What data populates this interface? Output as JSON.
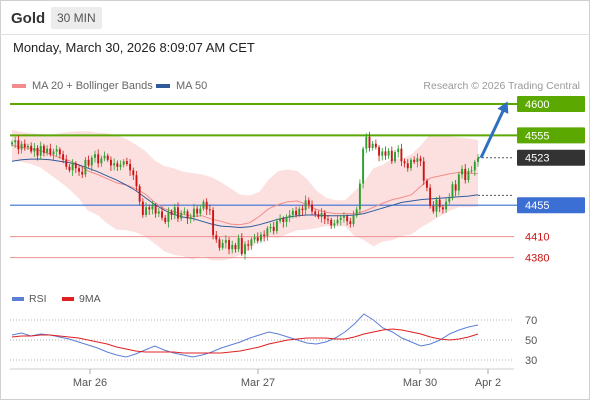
{
  "header": {
    "title": "Gold",
    "timeframe": "30 MIN",
    "datetime": "Monday, March 30, 2026 8:09:07 AM CET"
  },
  "legend": {
    "ma20_label": "MA 20 + Bollinger Bands",
    "ma50_label": "MA 50",
    "credit": "Research © 2026 Trading Central",
    "ma20_color": "#f28b8b",
    "ma50_color": "#2f5b9b"
  },
  "rsi_legend": {
    "rsi_label": "RSI",
    "ma9_label": "9MA",
    "rsi_color": "#5b7fd6",
    "ma9_color": "#e02020"
  },
  "colors": {
    "up_candle": "#2e9e2e",
    "down_candle": "#cc1414",
    "bollinger_fill": "#fbdada",
    "resistance": "#5aa800",
    "support_blue": "#3b6fd4",
    "support_red": "#ef8f8f",
    "current": "#333333",
    "arrow": "#2f6fc0"
  },
  "chart_data": [
    {
      "type": "candlestick",
      "title": "Gold",
      "ylim": [
        4345,
        4620
      ],
      "x_tick_labels": [
        "Mar 26",
        "Mar 27",
        "Mar 30",
        "Apr 2"
      ],
      "levels": [
        {
          "label": "4600",
          "value": 4600,
          "kind": "resistance"
        },
        {
          "label": "4555",
          "value": 4555,
          "kind": "resistance"
        },
        {
          "label": "4523",
          "value": 4523,
          "kind": "current"
        },
        {
          "label": "4455",
          "value": 4455,
          "kind": "pivot"
        },
        {
          "label": "4410",
          "value": 4410,
          "kind": "support"
        },
        {
          "label": "4380",
          "value": 4380,
          "kind": "support"
        }
      ],
      "close": [
        4545,
        4548,
        4535,
        4543,
        4538,
        4540,
        4532,
        4537,
        4526,
        4540,
        4530,
        4536,
        4528,
        4532,
        4535,
        4528,
        4520,
        4510,
        4505,
        4515,
        4508,
        4503,
        4499,
        4520,
        4512,
        4523,
        4528,
        4515,
        4522,
        4526,
        4520,
        4512,
        4515,
        4510,
        4513,
        4518,
        4514,
        4505,
        4498,
        4482,
        4460,
        4441,
        4452,
        4449,
        4455,
        4443,
        4446,
        4437,
        4431,
        4446,
        4441,
        4452,
        4436,
        4444,
        4446,
        4436,
        4438,
        4450,
        4443,
        4450,
        4460,
        4449,
        4448,
        4412,
        4406,
        4394,
        4401,
        4405,
        4392,
        4398,
        4392,
        4408,
        4385,
        4399,
        4397,
        4406,
        4409,
        4404,
        4413,
        4411,
        4422,
        4424,
        4418,
        4432,
        4436,
        4431,
        4437,
        4441,
        4447,
        4441,
        4450,
        4448,
        4462,
        4456,
        4446,
        4442,
        4438,
        4444,
        4435,
        4434,
        4426,
        4429,
        4434,
        4437,
        4439,
        4432,
        4428,
        4440,
        4449,
        4486,
        4536,
        4553,
        4537,
        4543,
        4538,
        4526,
        4532,
        4526,
        4533,
        4518,
        4531,
        4536,
        4518,
        4515,
        4508,
        4520,
        4517,
        4522,
        4518,
        4490,
        4480,
        4454,
        4446,
        4463,
        4452,
        4449,
        4460,
        4465,
        4485,
        4476,
        4499,
        4507,
        4491,
        4504,
        4505,
        4517,
        4523
      ],
      "indicators": {
        "bollinger_upper": [
          4563,
          4560,
          4558,
          4557,
          4556,
          4558,
          4560,
          4561,
          4561,
          4559,
          4558,
          4555,
          4550,
          4542,
          4533,
          4519,
          4511,
          4508,
          4503,
          4501,
          4499,
          4495,
          4488,
          4479,
          4470,
          4469,
          4474,
          4492,
          4504,
          4506,
          4504,
          4493,
          4476,
          4466,
          4462,
          4462,
          4475,
          4488,
          4508,
          4513,
          4522,
          4521,
          4528,
          4541,
          4557,
          4555,
          4554,
          4552,
          4551,
          4548
        ],
        "bollinger_lower": [
          4519,
          4517,
          4514,
          4509,
          4499,
          4489,
          4478,
          4465,
          4447,
          4441,
          4429,
          4420,
          4419,
          4416,
          4410,
          4400,
          4389,
          4384,
          4382,
          4377,
          4382,
          4376,
          4376,
          4378,
          4384,
          4392,
          4405,
          4409,
          4408,
          4414,
          4419,
          4420,
          4422,
          4425,
          4424,
          4425,
          4411,
          4405,
          4396,
          4403,
          4405,
          4411,
          4413,
          4423,
          4431,
          4439,
          4447,
          4452,
          4452,
          4453
        ],
        "ma20": [
          4541,
          4538,
          4536,
          4533,
          4528,
          4523,
          4519,
          4513,
          4504,
          4499,
          4493,
          4487,
          4484,
          4479,
          4471,
          4459,
          4450,
          4446,
          4442,
          4439,
          4440,
          4435,
          4432,
          4428,
          4427,
          4430,
          4439,
          4450,
          4456,
          4460,
          4461,
          4456,
          4449,
          4445,
          4443,
          4443,
          4443,
          4446,
          4452,
          4458,
          4463,
          4466,
          4470,
          4482,
          4494,
          4497,
          4500,
          4502,
          4501,
          4500
        ],
        "ma50": [
          4518,
          4520,
          4521,
          4521,
          4520,
          4518,
          4516,
          4513,
          4508,
          4503,
          4497,
          4491,
          4484,
          4476,
          4466,
          4456,
          4448,
          4442,
          4438,
          4436,
          4432,
          4428,
          4425,
          4424,
          4423,
          4424,
          4427,
          4431,
          4435,
          4438,
          4440,
          4441,
          4441,
          4440,
          4440,
          4440,
          4441,
          4443,
          4447,
          4451,
          4455,
          4459,
          4461,
          4463,
          4464,
          4465,
          4466,
          4467,
          4468,
          4470
        ]
      }
    },
    {
      "type": "line",
      "title": "RSI",
      "ylim": [
        20,
        80
      ],
      "y_ticks": [
        "70",
        "50",
        "30"
      ],
      "reference_lines": [
        70,
        50,
        30
      ],
      "series": [
        {
          "name": "RSI",
          "values": [
            55,
            57,
            54,
            56,
            55,
            53,
            51,
            48,
            45,
            42,
            38,
            35,
            33,
            36,
            40,
            44,
            40,
            37,
            35,
            33,
            35,
            38,
            42,
            45,
            48,
            52,
            55,
            58,
            56,
            53,
            50,
            47,
            46,
            48,
            52,
            58,
            66,
            76,
            70,
            62,
            58,
            52,
            48,
            44,
            46,
            50,
            56,
            60,
            63,
            65
          ]
        },
        {
          "name": "9MA",
          "values": [
            53,
            54,
            54,
            55,
            55,
            54,
            53,
            52,
            50,
            48,
            46,
            43,
            41,
            39,
            38,
            38,
            38,
            38,
            37,
            37,
            37,
            37,
            37,
            38,
            39,
            41,
            43,
            46,
            48,
            50,
            51,
            52,
            52,
            52,
            51,
            51,
            53,
            56,
            58,
            60,
            61,
            60,
            58,
            56,
            53,
            51,
            50,
            51,
            53,
            56
          ]
        }
      ]
    }
  ]
}
